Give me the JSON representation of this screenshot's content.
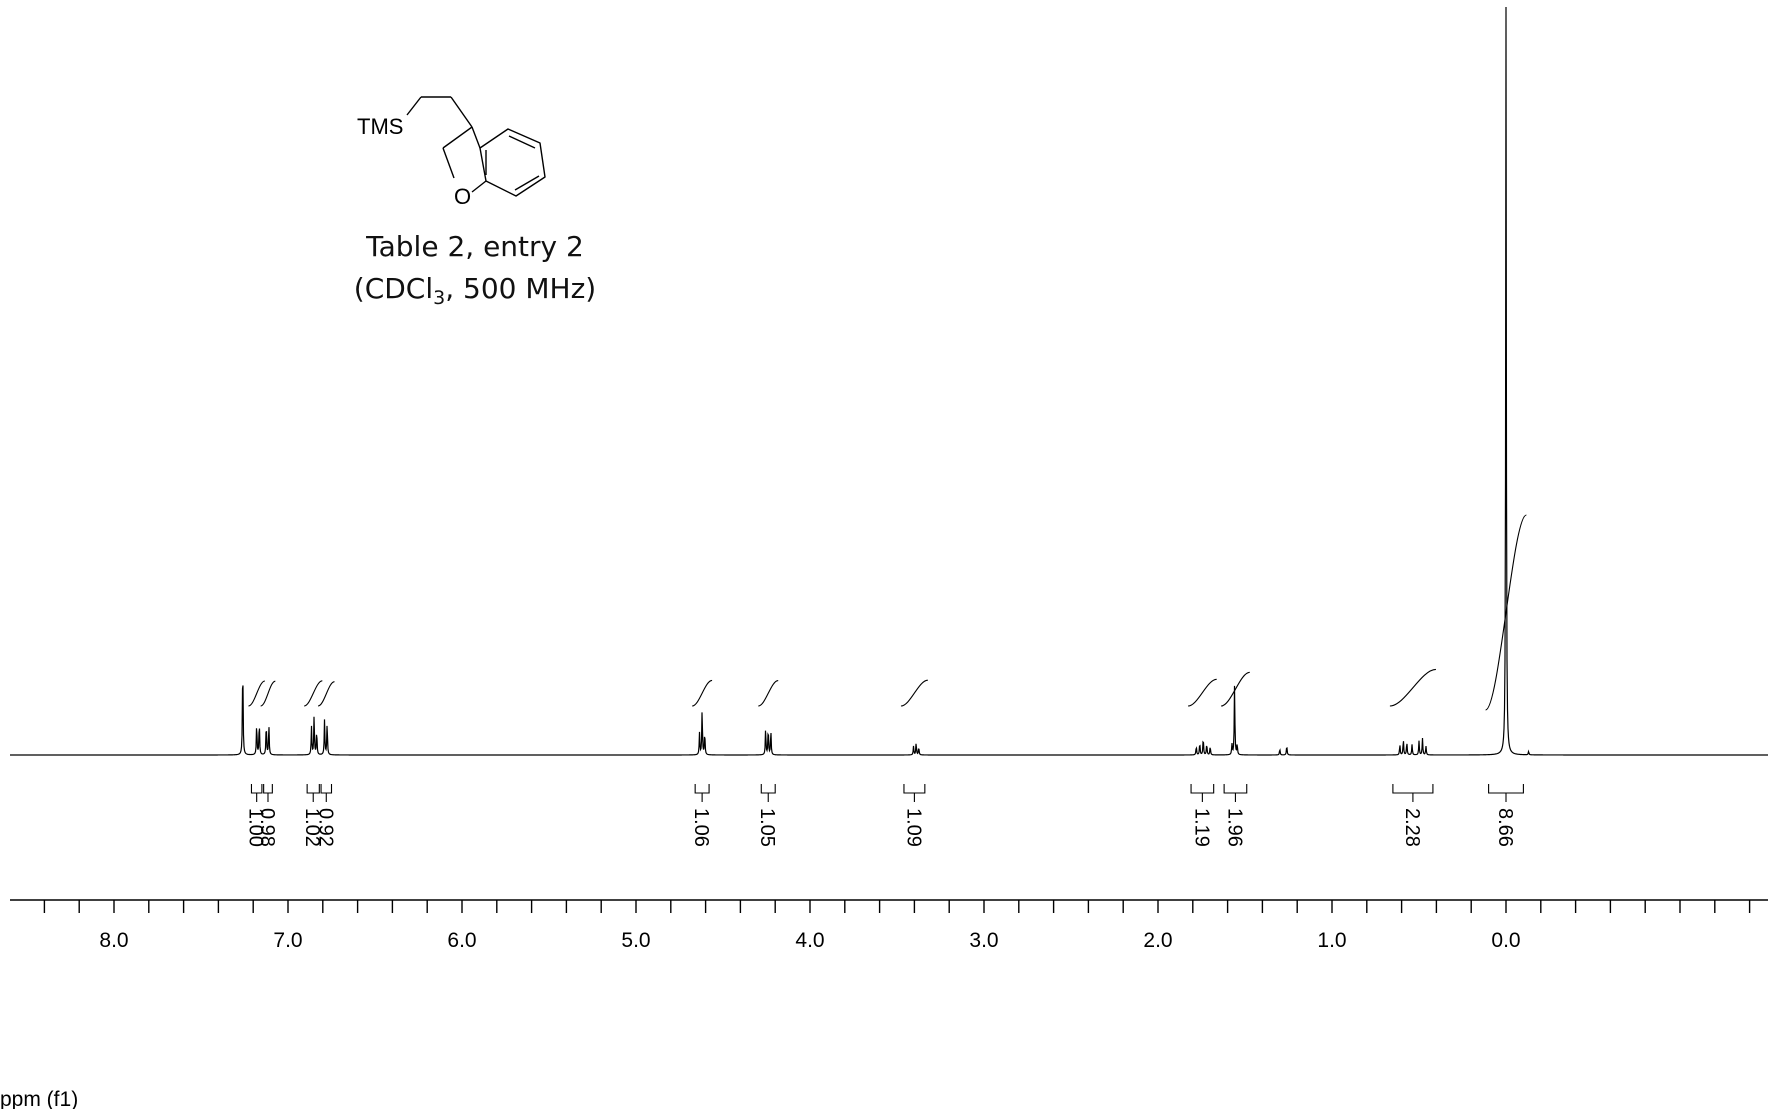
{
  "chart_data": {
    "type": "line",
    "title": "Table 2, entry 2",
    "subtitle": {
      "prefix": "(CDCl",
      "subscript": "3",
      "suffix": ", 500 MHz)"
    },
    "xlabel": "ppm (f1)",
    "ylabel": "",
    "xlim": [
      8.55,
      -0.35
    ],
    "x_reversed": true,
    "grid": false,
    "ticks": {
      "major": [
        8.0,
        7.0,
        6.0,
        5.0,
        4.0,
        3.0,
        2.0,
        1.0,
        0.0
      ],
      "minor_step": 0.2
    },
    "tick_labels": [
      "8.0",
      "7.0",
      "6.0",
      "5.0",
      "4.0",
      "3.0",
      "2.0",
      "1.0",
      "0.0"
    ],
    "structure_labels": [
      "TMS",
      "O"
    ],
    "peaks": [
      {
        "ppm": 7.26,
        "height": 0.11
      },
      {
        "ppm": 7.18,
        "height": 0.036
      },
      {
        "ppm": 7.165,
        "height": 0.038
      },
      {
        "ppm": 7.125,
        "height": 0.036
      },
      {
        "ppm": 7.11,
        "height": 0.035
      },
      {
        "ppm": 6.865,
        "height": 0.032
      },
      {
        "ppm": 6.85,
        "height": 0.045
      },
      {
        "ppm": 6.835,
        "height": 0.028
      },
      {
        "ppm": 6.79,
        "height": 0.04
      },
      {
        "ppm": 6.775,
        "height": 0.037
      },
      {
        "ppm": 4.635,
        "height": 0.025
      },
      {
        "ppm": 4.62,
        "height": 0.052
      },
      {
        "ppm": 4.605,
        "height": 0.026
      },
      {
        "ppm": 4.255,
        "height": 0.03
      },
      {
        "ppm": 4.24,
        "height": 0.031
      },
      {
        "ppm": 4.225,
        "height": 0.028
      },
      {
        "ppm": 3.405,
        "height": 0.01
      },
      {
        "ppm": 3.39,
        "height": 0.014
      },
      {
        "ppm": 3.375,
        "height": 0.009
      },
      {
        "ppm": 1.78,
        "height": 0.01
      },
      {
        "ppm": 1.76,
        "height": 0.014
      },
      {
        "ppm": 1.74,
        "height": 0.02
      },
      {
        "ppm": 1.72,
        "height": 0.013
      },
      {
        "ppm": 1.7,
        "height": 0.01
      },
      {
        "ppm": 1.575,
        "height": 0.012
      },
      {
        "ppm": 1.56,
        "height": 0.08
      },
      {
        "ppm": 1.545,
        "height": 0.012
      },
      {
        "ppm": 1.3,
        "height": 0.007
      },
      {
        "ppm": 1.26,
        "height": 0.011
      },
      {
        "ppm": 0.61,
        "height": 0.012
      },
      {
        "ppm": 0.59,
        "height": 0.018
      },
      {
        "ppm": 0.57,
        "height": 0.015
      },
      {
        "ppm": 0.54,
        "height": 0.012
      },
      {
        "ppm": 0.5,
        "height": 0.016
      },
      {
        "ppm": 0.48,
        "height": 0.019
      },
      {
        "ppm": 0.46,
        "height": 0.01
      },
      {
        "ppm": 0.0,
        "height": 0.85
      },
      {
        "ppm": -0.13,
        "height": 0.004
      }
    ],
    "integrals": [
      {
        "label": "1.00",
        "from": 7.21,
        "to": 7.15
      },
      {
        "label": "0.98",
        "from": 7.14,
        "to": 7.09
      },
      {
        "label": "1.02",
        "from": 6.89,
        "to": 6.82
      },
      {
        "label": "0.92",
        "from": 6.81,
        "to": 6.75
      },
      {
        "label": "1.06",
        "from": 4.66,
        "to": 4.58
      },
      {
        "label": "1.05",
        "from": 4.28,
        "to": 4.2
      },
      {
        "label": "1.09",
        "from": 3.46,
        "to": 3.34
      },
      {
        "label": "1.19",
        "from": 1.81,
        "to": 1.68
      },
      {
        "label": "1.96",
        "from": 1.62,
        "to": 1.49
      },
      {
        "label": "2.28",
        "from": 0.65,
        "to": 0.42
      },
      {
        "label": "8.66",
        "from": 0.1,
        "to": -0.1
      }
    ]
  }
}
